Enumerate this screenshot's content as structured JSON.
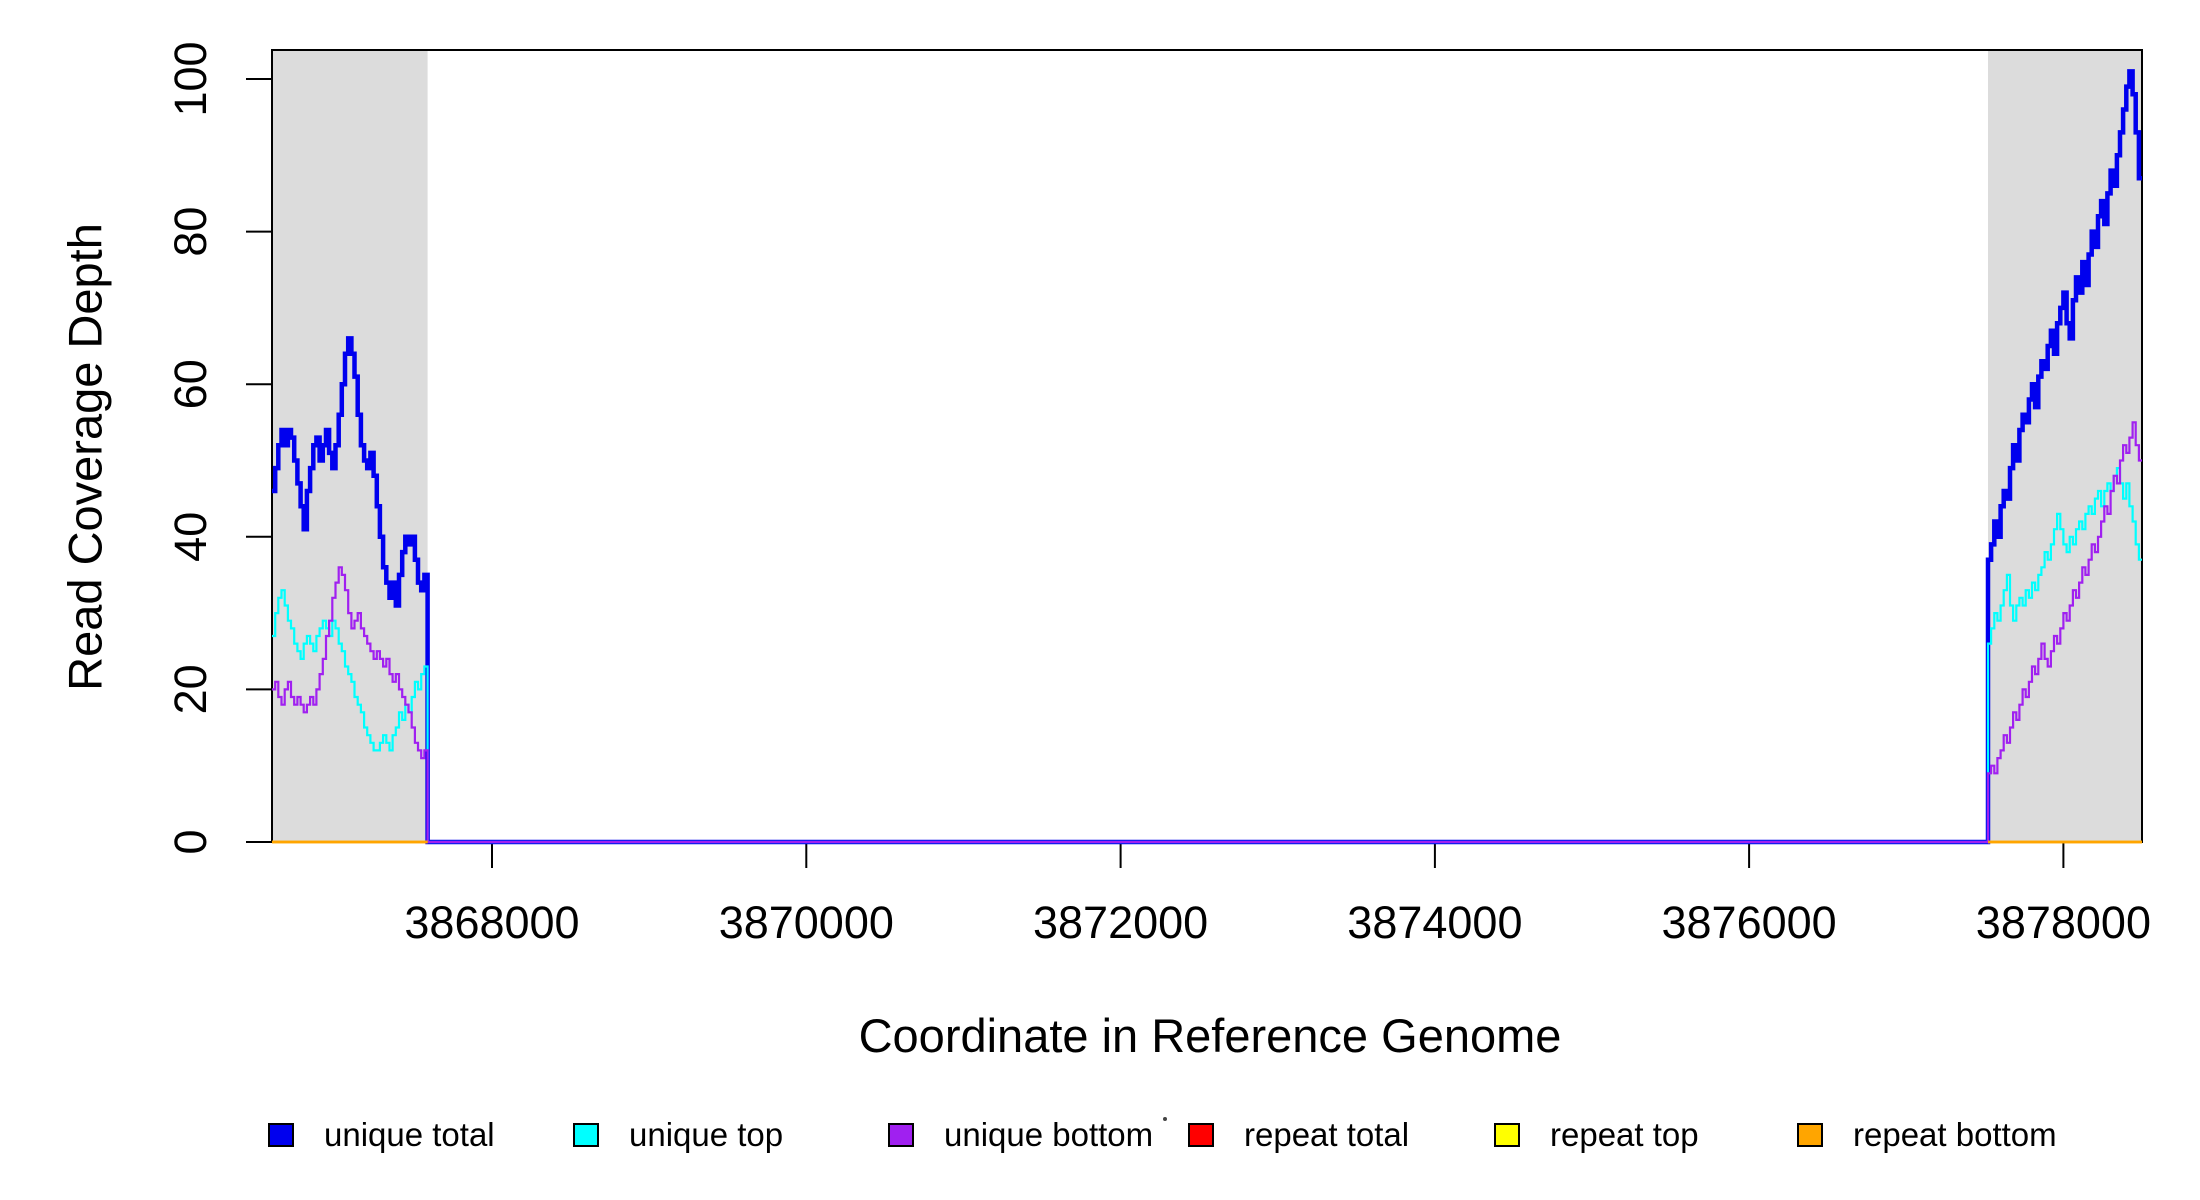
{
  "figure": {
    "background": "#FFFFFF",
    "plot_background": "#FFFFFF",
    "box_color": "#000000"
  },
  "chart_data": {
    "type": "line",
    "subtype": "step-coverage",
    "title": "",
    "xlabel": "Coordinate in Reference Genome",
    "ylabel": "Read Coverage Depth",
    "grid": false,
    "legend_position": "bottom",
    "x_domain": [
      3866600,
      3878500
    ],
    "y_domain": [
      0,
      103.8
    ],
    "x_ticks": [
      3868000,
      3870000,
      3872000,
      3874000,
      3876000,
      3878000
    ],
    "y_ticks": [
      0,
      20,
      40,
      60,
      80,
      100
    ],
    "region_fill": "#DCDCDC",
    "shaded_regions": [
      [
        3866600,
        3867590
      ],
      [
        3877520,
        3878500
      ]
    ],
    "series": [
      {
        "name": "unique total",
        "color": "#0000EE",
        "width": 4.5,
        "connect": true,
        "segments": [
          {
            "start": 3866600,
            "end": 3867590,
            "values": [
              46,
              49,
              52,
              54,
              52,
              54,
              53,
              50,
              47,
              44,
              41,
              46,
              49,
              52,
              53,
              50,
              52,
              54,
              51,
              49,
              52,
              56,
              60,
              64,
              66,
              64,
              61,
              56,
              52,
              50,
              49,
              51,
              48,
              44,
              40,
              36,
              34,
              32,
              34,
              31,
              35,
              38,
              40,
              39,
              40,
              37,
              34,
              33,
              35
            ]
          },
          {
            "start": 3877520,
            "end": 3878500,
            "values": [
              37,
              39,
              42,
              40,
              44,
              46,
              45,
              49,
              52,
              50,
              54,
              56,
              55,
              58,
              60,
              57,
              61,
              63,
              62,
              65,
              67,
              64,
              68,
              70,
              72,
              68,
              66,
              71,
              74,
              72,
              76,
              73,
              77,
              80,
              78,
              82,
              84,
              81,
              85,
              88,
              86,
              90,
              93,
              96,
              99,
              101,
              98,
              93,
              87
            ]
          }
        ]
      },
      {
        "name": "unique top",
        "color": "#00FFFF",
        "width": 2.2,
        "connect": true,
        "segments": [
          {
            "start": 3866600,
            "end": 3867590,
            "values": [
              27,
              30,
              32,
              33,
              31,
              29,
              28,
              26,
              25,
              24,
              26,
              27,
              26,
              25,
              27,
              28,
              29,
              28,
              27,
              29,
              28,
              26,
              25,
              23,
              22,
              21,
              19,
              18,
              17,
              15,
              14,
              13,
              12,
              12,
              13,
              14,
              13,
              12,
              14,
              15,
              17,
              16,
              18,
              17,
              19,
              21,
              20,
              22,
              23
            ]
          },
          {
            "start": 3877520,
            "end": 3878500,
            "values": [
              26,
              28,
              30,
              29,
              31,
              33,
              35,
              31,
              29,
              31,
              32,
              31,
              33,
              32,
              34,
              33,
              35,
              36,
              38,
              37,
              39,
              41,
              43,
              41,
              39,
              38,
              40,
              39,
              41,
              42,
              41,
              43,
              44,
              43,
              45,
              46,
              44,
              46,
              47,
              46,
              48,
              49,
              47,
              45,
              47,
              44,
              42,
              39,
              37
            ]
          }
        ]
      },
      {
        "name": "unique bottom",
        "color": "#A020F0",
        "width": 2.2,
        "connect": true,
        "segments": [
          {
            "start": 3866600,
            "end": 3867590,
            "values": [
              20,
              21,
              19,
              18,
              20,
              21,
              19,
              18,
              19,
              18,
              17,
              18,
              19,
              18,
              20,
              22,
              24,
              27,
              29,
              32,
              34,
              36,
              35,
              33,
              30,
              28,
              29,
              30,
              28,
              27,
              26,
              25,
              24,
              25,
              24,
              23,
              24,
              22,
              21,
              22,
              20,
              19,
              18,
              17,
              15,
              13,
              12,
              11,
              12
            ]
          },
          {
            "start": 3877520,
            "end": 3878500,
            "values": [
              9,
              10,
              9,
              11,
              12,
              14,
              13,
              15,
              17,
              16,
              18,
              20,
              19,
              21,
              23,
              22,
              24,
              26,
              24,
              23,
              25,
              27,
              26,
              28,
              30,
              29,
              31,
              33,
              32,
              34,
              36,
              35,
              37,
              39,
              38,
              40,
              42,
              44,
              43,
              46,
              48,
              47,
              50,
              52,
              51,
              53,
              55,
              52,
              50
            ]
          }
        ]
      },
      {
        "name": "repeat total",
        "color": "#FF0000",
        "width": 2.5,
        "connect": false,
        "segments": [
          {
            "start": 3866600,
            "end": 3867590,
            "values": [
              0
            ]
          },
          {
            "start": 3877520,
            "end": 3878500,
            "values": [
              0
            ]
          }
        ]
      },
      {
        "name": "repeat top",
        "color": "#FFFF00",
        "width": 2.5,
        "connect": false,
        "segments": [
          {
            "start": 3866600,
            "end": 3867590,
            "values": [
              0
            ]
          },
          {
            "start": 3877520,
            "end": 3878500,
            "values": [
              0
            ]
          }
        ]
      },
      {
        "name": "repeat bottom",
        "color": "#FFA500",
        "width": 2.5,
        "connect": false,
        "segments": [
          {
            "start": 3866600,
            "end": 3867590,
            "values": [
              0
            ]
          },
          {
            "start": 3877520,
            "end": 3878500,
            "values": [
              0
            ]
          }
        ]
      }
    ]
  },
  "legend": {
    "items": [
      {
        "label": "unique total",
        "color": "#0000EE"
      },
      {
        "label": "unique top",
        "color": "#00FFFF"
      },
      {
        "label": "unique bottom",
        "color": "#A020F0"
      },
      {
        "label": "repeat total",
        "color": "#FF0000"
      },
      {
        "label": "repeat top",
        "color": "#FFFF00"
      },
      {
        "label": "repeat bottom",
        "color": "#FFA500"
      }
    ]
  }
}
